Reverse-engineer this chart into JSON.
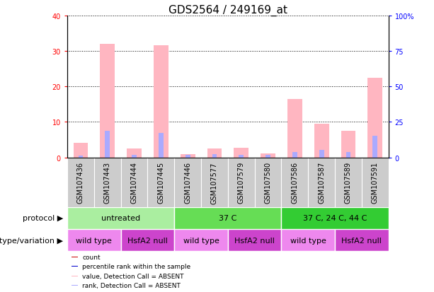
{
  "title": "GDS2564 / 249169_at",
  "samples": [
    "GSM107436",
    "GSM107443",
    "GSM107444",
    "GSM107445",
    "GSM107446",
    "GSM107577",
    "GSM107579",
    "GSM107580",
    "GSM107586",
    "GSM107587",
    "GSM107589",
    "GSM107591"
  ],
  "pink_bar_heights": [
    4.0,
    32.0,
    2.5,
    31.5,
    1.0,
    2.5,
    2.8,
    1.2,
    16.5,
    9.5,
    7.5,
    22.5
  ],
  "blue_bar_heights": [
    0.5,
    7.5,
    0.8,
    6.8,
    0.8,
    1.0,
    0.8,
    0.8,
    1.5,
    2.2,
    1.5,
    6.0
  ],
  "ylim_left": [
    0,
    40
  ],
  "ylim_right": [
    0,
    100
  ],
  "yticks_left": [
    0,
    10,
    20,
    30,
    40
  ],
  "yticks_right": [
    0,
    25,
    50,
    75,
    100
  ],
  "ytick_labels_right": [
    "0",
    "25",
    "50",
    "75",
    "100%"
  ],
  "protocol_groups": [
    {
      "label": "untreated",
      "start": 0,
      "end": 4,
      "color": "#AAEEA0"
    },
    {
      "label": "37 C",
      "start": 4,
      "end": 8,
      "color": "#66DD55"
    },
    {
      "label": "37 C, 24 C, 44 C",
      "start": 8,
      "end": 12,
      "color": "#33CC33"
    }
  ],
  "genotype_groups": [
    {
      "label": "wild type",
      "start": 0,
      "end": 2,
      "color": "#EE88EE"
    },
    {
      "label": "HsfA2 null",
      "start": 2,
      "end": 4,
      "color": "#CC44CC"
    },
    {
      "label": "wild type",
      "start": 4,
      "end": 6,
      "color": "#EE88EE"
    },
    {
      "label": "HsfA2 null",
      "start": 6,
      "end": 8,
      "color": "#CC44CC"
    },
    {
      "label": "wild type",
      "start": 8,
      "end": 10,
      "color": "#EE88EE"
    },
    {
      "label": "HsfA2 null",
      "start": 10,
      "end": 12,
      "color": "#CC44CC"
    }
  ],
  "legend_items": [
    {
      "label": "count",
      "color": "#CC0000"
    },
    {
      "label": "percentile rank within the sample",
      "color": "#0000CC"
    },
    {
      "label": "value, Detection Call = ABSENT",
      "color": "#FFB6C1"
    },
    {
      "label": "rank, Detection Call = ABSENT",
      "color": "#AAAAFF"
    }
  ],
  "pink_color": "#FFB6C1",
  "light_blue_color": "#AAAAFF",
  "red_color": "#CC0000",
  "dark_blue_color": "#0000CC",
  "background_color": "#FFFFFF",
  "title_fontsize": 11,
  "tick_fontsize": 7,
  "label_fontsize": 8,
  "annotation_fontsize": 8,
  "protocol_label": "protocol",
  "genotype_label": "genotype/variation",
  "sample_label_color": "#000000",
  "xticklabel_bg": "#CCCCCC"
}
